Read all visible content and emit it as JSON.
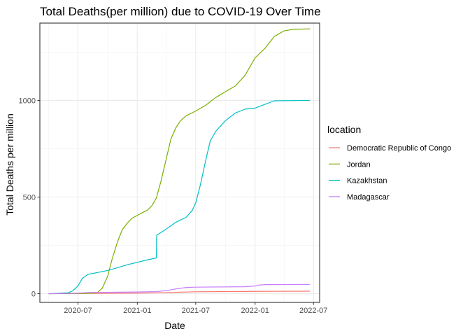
{
  "chart_data": {
    "type": "line",
    "title": "Total Deaths(per million) due to COVID-19 Over Time",
    "xlabel": "Date",
    "ylabel": "Total Deaths per million",
    "x_range": [
      "2020-03-05",
      "2022-07-20"
    ],
    "ylim": [
      -45,
      1400
    ],
    "x_ticks": [
      {
        "date": "2020-07-01",
        "label": "2020-07"
      },
      {
        "date": "2021-01-01",
        "label": "2021-01"
      },
      {
        "date": "2021-07-01",
        "label": "2021-07"
      },
      {
        "date": "2022-01-01",
        "label": "2022-01"
      },
      {
        "date": "2022-07-01",
        "label": "2022-07"
      }
    ],
    "y_ticks": [
      0,
      500,
      1000
    ],
    "grid": true,
    "legend": {
      "title": "location",
      "position": "right"
    },
    "series": [
      {
        "name": "Democratic Republic of Congo",
        "color": "#F8766D",
        "points": [
          [
            "2020-04-01",
            0
          ],
          [
            "2020-07-01",
            1
          ],
          [
            "2021-01-01",
            3
          ],
          [
            "2021-04-01",
            6
          ],
          [
            "2021-07-01",
            10
          ],
          [
            "2022-01-01",
            12
          ],
          [
            "2022-06-20",
            13
          ]
        ]
      },
      {
        "name": "Jordan",
        "color": "#7CAE00",
        "points": [
          [
            "2020-04-01",
            0
          ],
          [
            "2020-07-01",
            1
          ],
          [
            "2020-08-15",
            3
          ],
          [
            "2020-09-01",
            8
          ],
          [
            "2020-09-15",
            30
          ],
          [
            "2020-10-01",
            90
          ],
          [
            "2020-10-15",
            180
          ],
          [
            "2020-11-01",
            270
          ],
          [
            "2020-11-15",
            330
          ],
          [
            "2020-12-01",
            365
          ],
          [
            "2020-12-15",
            390
          ],
          [
            "2021-01-01",
            405
          ],
          [
            "2021-01-15",
            418
          ],
          [
            "2021-02-01",
            432
          ],
          [
            "2021-02-15",
            455
          ],
          [
            "2021-03-01",
            495
          ],
          [
            "2021-03-15",
            580
          ],
          [
            "2021-04-01",
            700
          ],
          [
            "2021-04-15",
            800
          ],
          [
            "2021-05-01",
            860
          ],
          [
            "2021-05-15",
            895
          ],
          [
            "2021-06-01",
            920
          ],
          [
            "2021-07-01",
            945
          ],
          [
            "2021-08-01",
            975
          ],
          [
            "2021-09-01",
            1015
          ],
          [
            "2021-10-01",
            1045
          ],
          [
            "2021-11-01",
            1075
          ],
          [
            "2021-12-01",
            1130
          ],
          [
            "2022-01-01",
            1220
          ],
          [
            "2022-02-01",
            1270
          ],
          [
            "2022-03-01",
            1330
          ],
          [
            "2022-04-01",
            1360
          ],
          [
            "2022-05-01",
            1368
          ],
          [
            "2022-06-20",
            1370
          ]
        ]
      },
      {
        "name": "Kazakhstan",
        "color": "#00BFC4",
        "points": [
          [
            "2020-04-01",
            0
          ],
          [
            "2020-06-01",
            5
          ],
          [
            "2020-06-15",
            15
          ],
          [
            "2020-07-01",
            40
          ],
          [
            "2020-07-15",
            80
          ],
          [
            "2020-08-01",
            100
          ],
          [
            "2020-09-01",
            110
          ],
          [
            "2020-10-01",
            120
          ],
          [
            "2020-11-01",
            135
          ],
          [
            "2020-12-01",
            150
          ],
          [
            "2021-01-01",
            162
          ],
          [
            "2021-02-01",
            175
          ],
          [
            "2021-03-01",
            185
          ],
          [
            "2021-03-02",
            302
          ],
          [
            "2021-04-01",
            335
          ],
          [
            "2021-05-01",
            370
          ],
          [
            "2021-06-01",
            395
          ],
          [
            "2021-06-20",
            430
          ],
          [
            "2021-07-01",
            470
          ],
          [
            "2021-07-15",
            560
          ],
          [
            "2021-08-01",
            690
          ],
          [
            "2021-08-15",
            790
          ],
          [
            "2021-09-01",
            840
          ],
          [
            "2021-10-01",
            895
          ],
          [
            "2021-11-01",
            935
          ],
          [
            "2021-12-01",
            955
          ],
          [
            "2022-01-01",
            960
          ],
          [
            "2022-02-01",
            980
          ],
          [
            "2022-03-01",
            998
          ],
          [
            "2022-06-20",
            1000
          ]
        ]
      },
      {
        "name": "Madagascar",
        "color": "#C77CFF",
        "points": [
          [
            "2020-04-01",
            0
          ],
          [
            "2020-07-01",
            3
          ],
          [
            "2020-08-01",
            6
          ],
          [
            "2021-01-01",
            9
          ],
          [
            "2021-03-01",
            11
          ],
          [
            "2021-04-01",
            16
          ],
          [
            "2021-05-01",
            25
          ],
          [
            "2021-06-01",
            32
          ],
          [
            "2021-07-01",
            34
          ],
          [
            "2021-12-01",
            36
          ],
          [
            "2022-01-01",
            40
          ],
          [
            "2022-01-15",
            45
          ],
          [
            "2022-02-01",
            47
          ],
          [
            "2022-06-20",
            48
          ]
        ]
      }
    ]
  }
}
